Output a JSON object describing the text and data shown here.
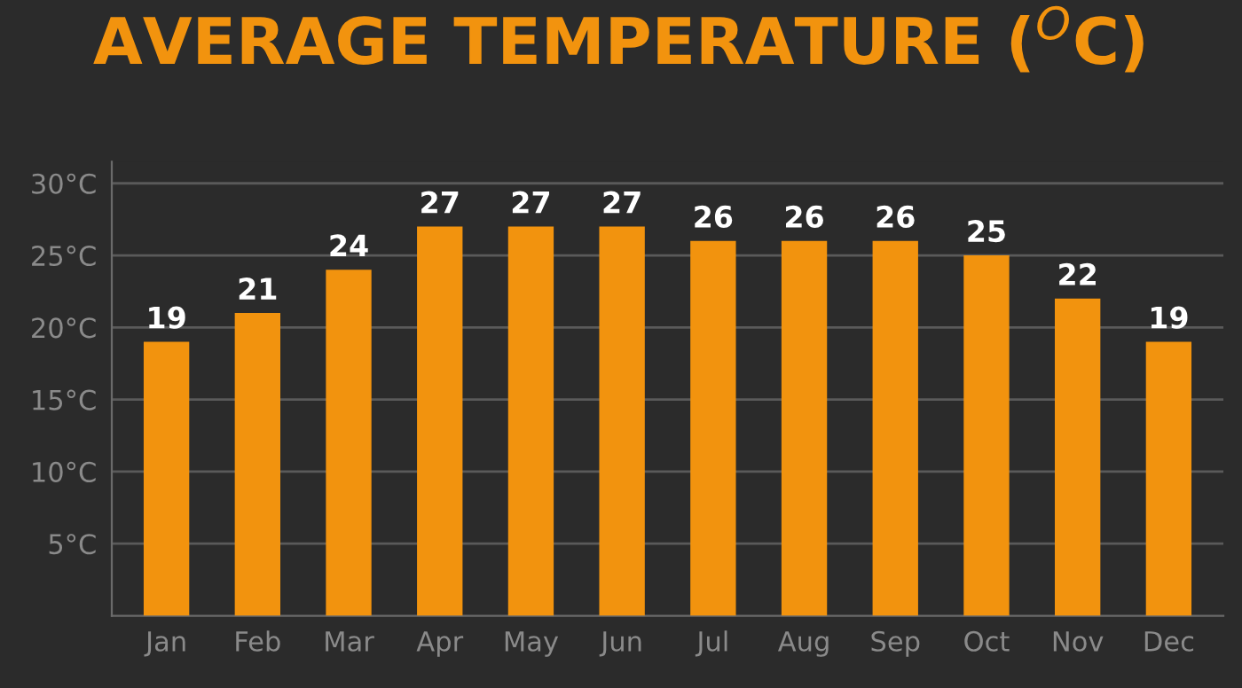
{
  "chart_data": {
    "type": "bar",
    "title": "AVERAGE TEMPERATURE ($^{O}$C)",
    "categories": [
      "Jan",
      "Feb",
      "Mar",
      "Apr",
      "May",
      "Jun",
      "Jul",
      "Aug",
      "Sep",
      "Oct",
      "Nov",
      "Dec"
    ],
    "values": [
      19,
      21,
      24,
      27,
      27,
      27,
      26,
      26,
      26,
      25,
      22,
      19
    ],
    "color": "#f2930e",
    "ylim": [
      0,
      31.5
    ],
    "yticks": [
      {
        "value": 5,
        "label": "5°C"
      },
      {
        "value": 10,
        "label": "10°C"
      },
      {
        "value": 15,
        "label": "15°C"
      },
      {
        "value": 20,
        "label": "20°C"
      },
      {
        "value": 25,
        "label": "25°C"
      },
      {
        "value": 30,
        "label": "30°C"
      }
    ],
    "grid": "y",
    "data_labels": true
  }
}
